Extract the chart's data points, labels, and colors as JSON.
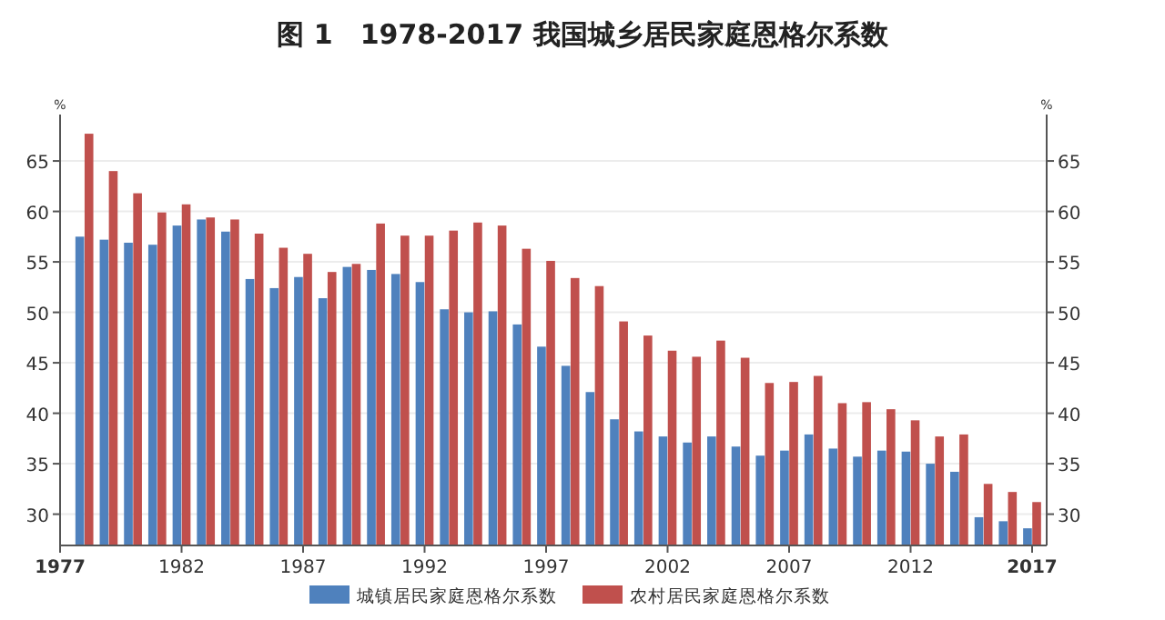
{
  "chart_data": {
    "type": "bar",
    "title": "图 1　1978-2017 我国城乡居民家庭恩格尔系数",
    "x": [
      1978,
      1979,
      1980,
      1981,
      1982,
      1983,
      1984,
      1985,
      1986,
      1987,
      1988,
      1989,
      1990,
      1991,
      1992,
      1993,
      1994,
      1995,
      1996,
      1997,
      1998,
      1999,
      2000,
      2001,
      2002,
      2003,
      2004,
      2005,
      2006,
      2007,
      2008,
      2009,
      2010,
      2011,
      2012,
      2013,
      2014,
      2015,
      2016,
      2017
    ],
    "series": [
      {
        "name": "城镇居民家庭恩格尔系数",
        "color": "#4f81bd",
        "values": [
          57.5,
          57.2,
          56.9,
          56.7,
          58.6,
          59.2,
          58.0,
          53.3,
          52.4,
          53.5,
          51.4,
          54.5,
          54.2,
          53.8,
          53.0,
          50.3,
          50.0,
          50.1,
          48.8,
          46.6,
          44.7,
          42.1,
          39.4,
          38.2,
          37.7,
          37.1,
          37.7,
          36.7,
          35.8,
          36.3,
          37.9,
          36.5,
          35.7,
          36.3,
          36.2,
          35.0,
          34.2,
          29.7,
          29.3,
          28.6
        ]
      },
      {
        "name": "农村居民家庭恩格尔系数",
        "color": "#c0504d",
        "values": [
          67.7,
          64.0,
          61.8,
          59.9,
          60.7,
          59.4,
          59.2,
          57.8,
          56.4,
          55.8,
          54.0,
          54.8,
          58.8,
          57.6,
          57.6,
          58.1,
          58.9,
          58.6,
          56.3,
          55.1,
          53.4,
          52.6,
          49.1,
          47.7,
          46.2,
          45.6,
          47.2,
          45.5,
          43.0,
          43.1,
          43.7,
          41.0,
          41.1,
          40.4,
          39.3,
          37.7,
          37.9,
          33.0,
          32.2,
          31.2
        ]
      }
    ],
    "xlim": [
      1977,
      2017.6
    ],
    "xticks": [
      1977,
      1982,
      1987,
      1992,
      1997,
      2002,
      2007,
      2012,
      2017
    ],
    "ylim": [
      26.9,
      69.6
    ],
    "yticks": [
      30,
      35,
      40,
      45,
      50,
      55,
      60,
      65
    ],
    "y2lim": [
      26.9,
      69.6
    ],
    "y2ticks": [
      30,
      35,
      40,
      45,
      50,
      55,
      60,
      65
    ],
    "ylabel": "%",
    "y2label": "%",
    "grid": "y",
    "legend": "bottom"
  }
}
